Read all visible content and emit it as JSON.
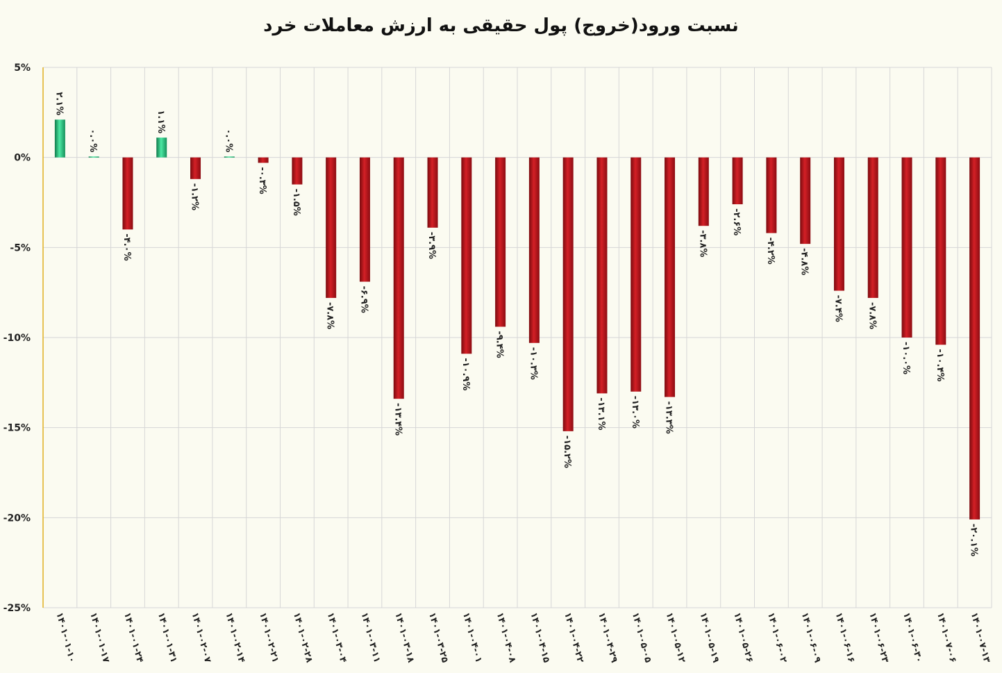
{
  "chart_data": {
    "type": "bar",
    "title": "نسبت ورود(خروج) پول حقیقی به ارزش معاملات خرد",
    "xlabel": "",
    "ylabel": "",
    "ylim": [
      -25,
      5
    ],
    "yticks": [
      5,
      0,
      -5,
      -10,
      -15,
      -20,
      -25
    ],
    "ytick_labels": [
      "5%",
      "0%",
      "-5%",
      "-10%",
      "-15%",
      "-20%",
      "-25%"
    ],
    "grid": true,
    "legend": "none",
    "categories": [
      "۱۴۰۱-۰۱-۱۰",
      "۱۴۰۱-۰۱-۱۷",
      "۱۴۰۱-۰۱-۲۴",
      "۱۴۰۱-۰۱-۳۱",
      "۱۴۰۱-۰۲-۰۷",
      "۱۴۰۱-۰۲-۱۴",
      "۱۴۰۱-۰۲-۲۱",
      "۱۴۰۱-۰۲-۲۸",
      "۱۴۰۱-۰۳-۰۴",
      "۱۴۰۱-۰۳-۱۱",
      "۱۴۰۱-۰۳-۱۸",
      "۱۴۰۱-۰۳-۲۵",
      "۱۴۰۱-۰۴-۰۱",
      "۱۴۰۱-۰۴-۰۸",
      "۱۴۰۱-۰۴-۱۵",
      "۱۴۰۱-۰۴-۲۲",
      "۱۴۰۱-۰۴-۲۹",
      "۱۴۰۱-۰۵-۰۵",
      "۱۴۰۱-۰۵-۱۲",
      "۱۴۰۱-۰۵-۱۹",
      "۱۴۰۱-۰۵-۲۶",
      "۱۴۰۱-۰۶-۰۲",
      "۱۴۰۱-۰۶-۰۹",
      "۱۴۰۱-۰۶-۱۶",
      "۱۴۰۱-۰۶-۲۳",
      "۱۴۰۱-۰۶-۳۰",
      "۱۴۰۱-۰۷-۰۶",
      "۱۴۰۱-۰۷-۱۳"
    ],
    "values": [
      2.1,
      0.05,
      -4.0,
      1.1,
      -1.2,
      0.05,
      -0.3,
      -1.5,
      -7.8,
      -6.9,
      -13.4,
      -3.9,
      -10.9,
      -9.4,
      -10.3,
      -15.2,
      -13.1,
      -13.0,
      -13.3,
      -3.8,
      -2.6,
      -4.2,
      -4.8,
      -7.4,
      -7.8,
      -10.0,
      -10.4,
      -20.1
    ],
    "data_labels": [
      "۲.۱%",
      "۰.۰%",
      "-۴.۰%",
      "۱.۱%",
      "-۱.۲%",
      "۰.۰%",
      "-۰.۳%",
      "-۱.۵%",
      "-۷.۸%",
      "-۶.۹%",
      "-۱۳.۴%",
      "-۳.۹%",
      "-۱۰.۹%",
      "-۹.۴%",
      "-۱۰.۳%",
      "-۱۵.۲%",
      "-۱۳.۱%",
      "-۱۳.۰%",
      "-۱۳.۳%",
      "-۳.۸%",
      "-۲.۶%",
      "-۴.۲%",
      "-۴.۸%",
      "-۷.۴%",
      "-۷.۸%",
      "-۱۰.۰%",
      "-۱۰.۴%",
      "-۲۰.۱%"
    ],
    "colors": {
      "positive": "#2ecc8a",
      "negative": "#c0171d",
      "grid": "#d6d6d6",
      "axis": "#e0b020"
    }
  }
}
